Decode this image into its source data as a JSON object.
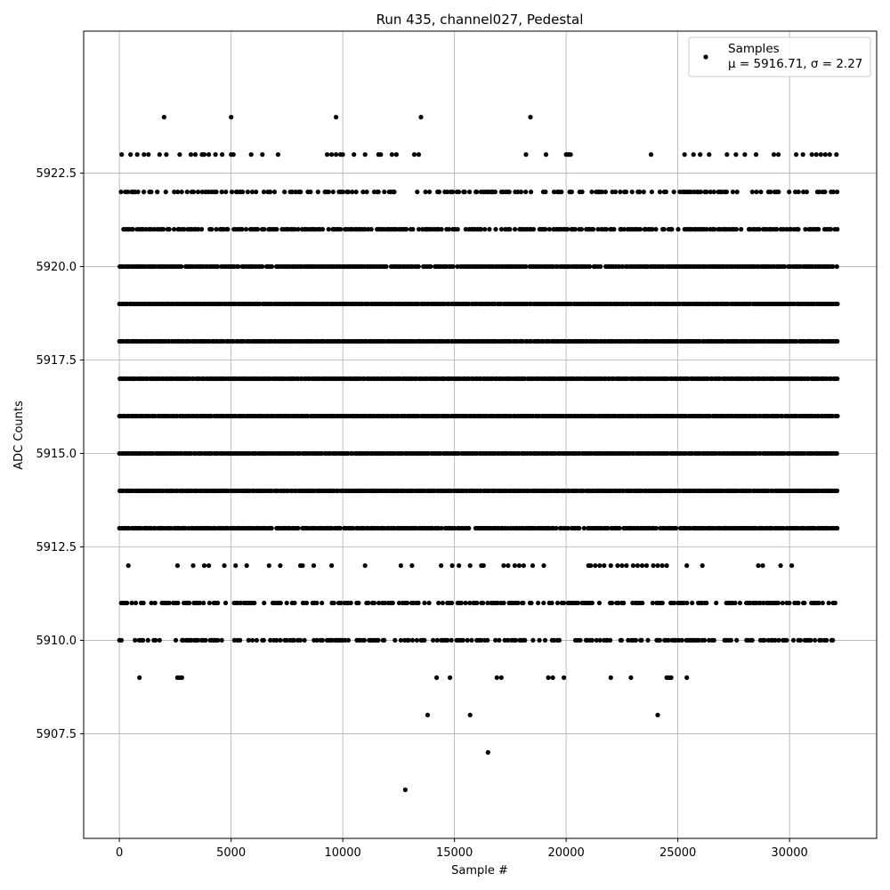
{
  "chart_data": {
    "type": "scatter",
    "title": "Run 435, channel027, Pedestal",
    "xlabel": "Sample #",
    "ylabel": "ADC Counts",
    "xlim": [
      -1600,
      33900
    ],
    "ylim": [
      5904.7,
      5926.3
    ],
    "xticks": [
      0,
      5000,
      10000,
      15000,
      20000,
      25000,
      30000
    ],
    "yticks": [
      5907.5,
      5910.0,
      5912.5,
      5915.0,
      5917.5,
      5920.0,
      5922.5
    ],
    "xtick_labels": [
      "0",
      "5000",
      "10000",
      "15000",
      "20000",
      "25000",
      "30000"
    ],
    "ytick_labels": [
      "5907.5",
      "5910.0",
      "5912.5",
      "5915.0",
      "5917.5",
      "5920.0",
      "5922.5"
    ],
    "grid": true,
    "legend_position": "top-right",
    "x_extent": [
      0,
      32200
    ],
    "marker_color": "#000000",
    "series": [
      {
        "name": "Samples",
        "legend_stat": "μ = 5916.71, σ = 2.27",
        "levels": [
          {
            "y": 5924,
            "x": [
              2000,
              5000,
              9700,
              13500,
              18400
            ]
          },
          {
            "y": 5923,
            "x": [
              100,
              500,
              800,
              1100,
              1300,
              1800,
              2100,
              2700,
              3200,
              3400,
              3700,
              3800,
              4000,
              4300,
              4600,
              5000,
              5100,
              5900,
              6400,
              7100,
              9300,
              9500,
              9700,
              9900,
              10000,
              10500,
              11000,
              11600,
              11700,
              12200,
              12400,
              13200,
              13400,
              18200,
              19100,
              20000,
              20100,
              20200,
              23800,
              25300,
              25700,
              26000,
              26400,
              27200,
              27600,
              28000,
              28500,
              29300,
              29500,
              30300,
              30600,
              31000,
              31200,
              31400,
              31600,
              31800,
              32100
            ]
          }
        ],
        "dense_levels": [
          {
            "y": 5922,
            "density": 0.45
          },
          {
            "y": 5921,
            "density": 0.75
          },
          {
            "y": 5920,
            "density": 0.95
          },
          {
            "y": 5919,
            "density": 1.0
          },
          {
            "y": 5918,
            "density": 1.0
          },
          {
            "y": 5917,
            "density": 1.0
          },
          {
            "y": 5916,
            "density": 1.0
          },
          {
            "y": 5915,
            "density": 1.0
          },
          {
            "y": 5914,
            "density": 1.0
          },
          {
            "y": 5913,
            "density": 0.95
          },
          {
            "y": 5911,
            "density": 0.6
          },
          {
            "y": 5910,
            "density": 0.55
          }
        ],
        "sparse_levels": [
          {
            "y": 5912,
            "x": [
              400,
              2600,
              3300,
              3800,
              4000,
              4700,
              5200,
              5700,
              6700,
              7200,
              8100,
              8200,
              8700,
              9500,
              11000,
              12600,
              13100,
              14400,
              14900,
              15200,
              15700,
              16200,
              16300,
              17200,
              17400,
              17700,
              17900,
              18100,
              18500,
              19000,
              21000,
              21100,
              21300,
              21500,
              21700,
              22000,
              22300,
              22500,
              22700,
              23000,
              23200,
              23400,
              23600,
              23900,
              24100,
              24300,
              24500,
              25400,
              26100,
              28600,
              28800,
              29600,
              30100
            ]
          },
          {
            "y": 5909,
            "x": [
              900,
              2600,
              2700,
              2800,
              14200,
              14800,
              16900,
              17100,
              19200,
              19400,
              19900,
              22000,
              22900,
              24500,
              24600,
              24700,
              25400
            ]
          },
          {
            "y": 5908,
            "x": [
              13800,
              15700,
              24100
            ]
          },
          {
            "y": 5907,
            "x": [
              16500
            ]
          },
          {
            "y": 5906,
            "x": [
              12800
            ]
          }
        ]
      }
    ]
  }
}
